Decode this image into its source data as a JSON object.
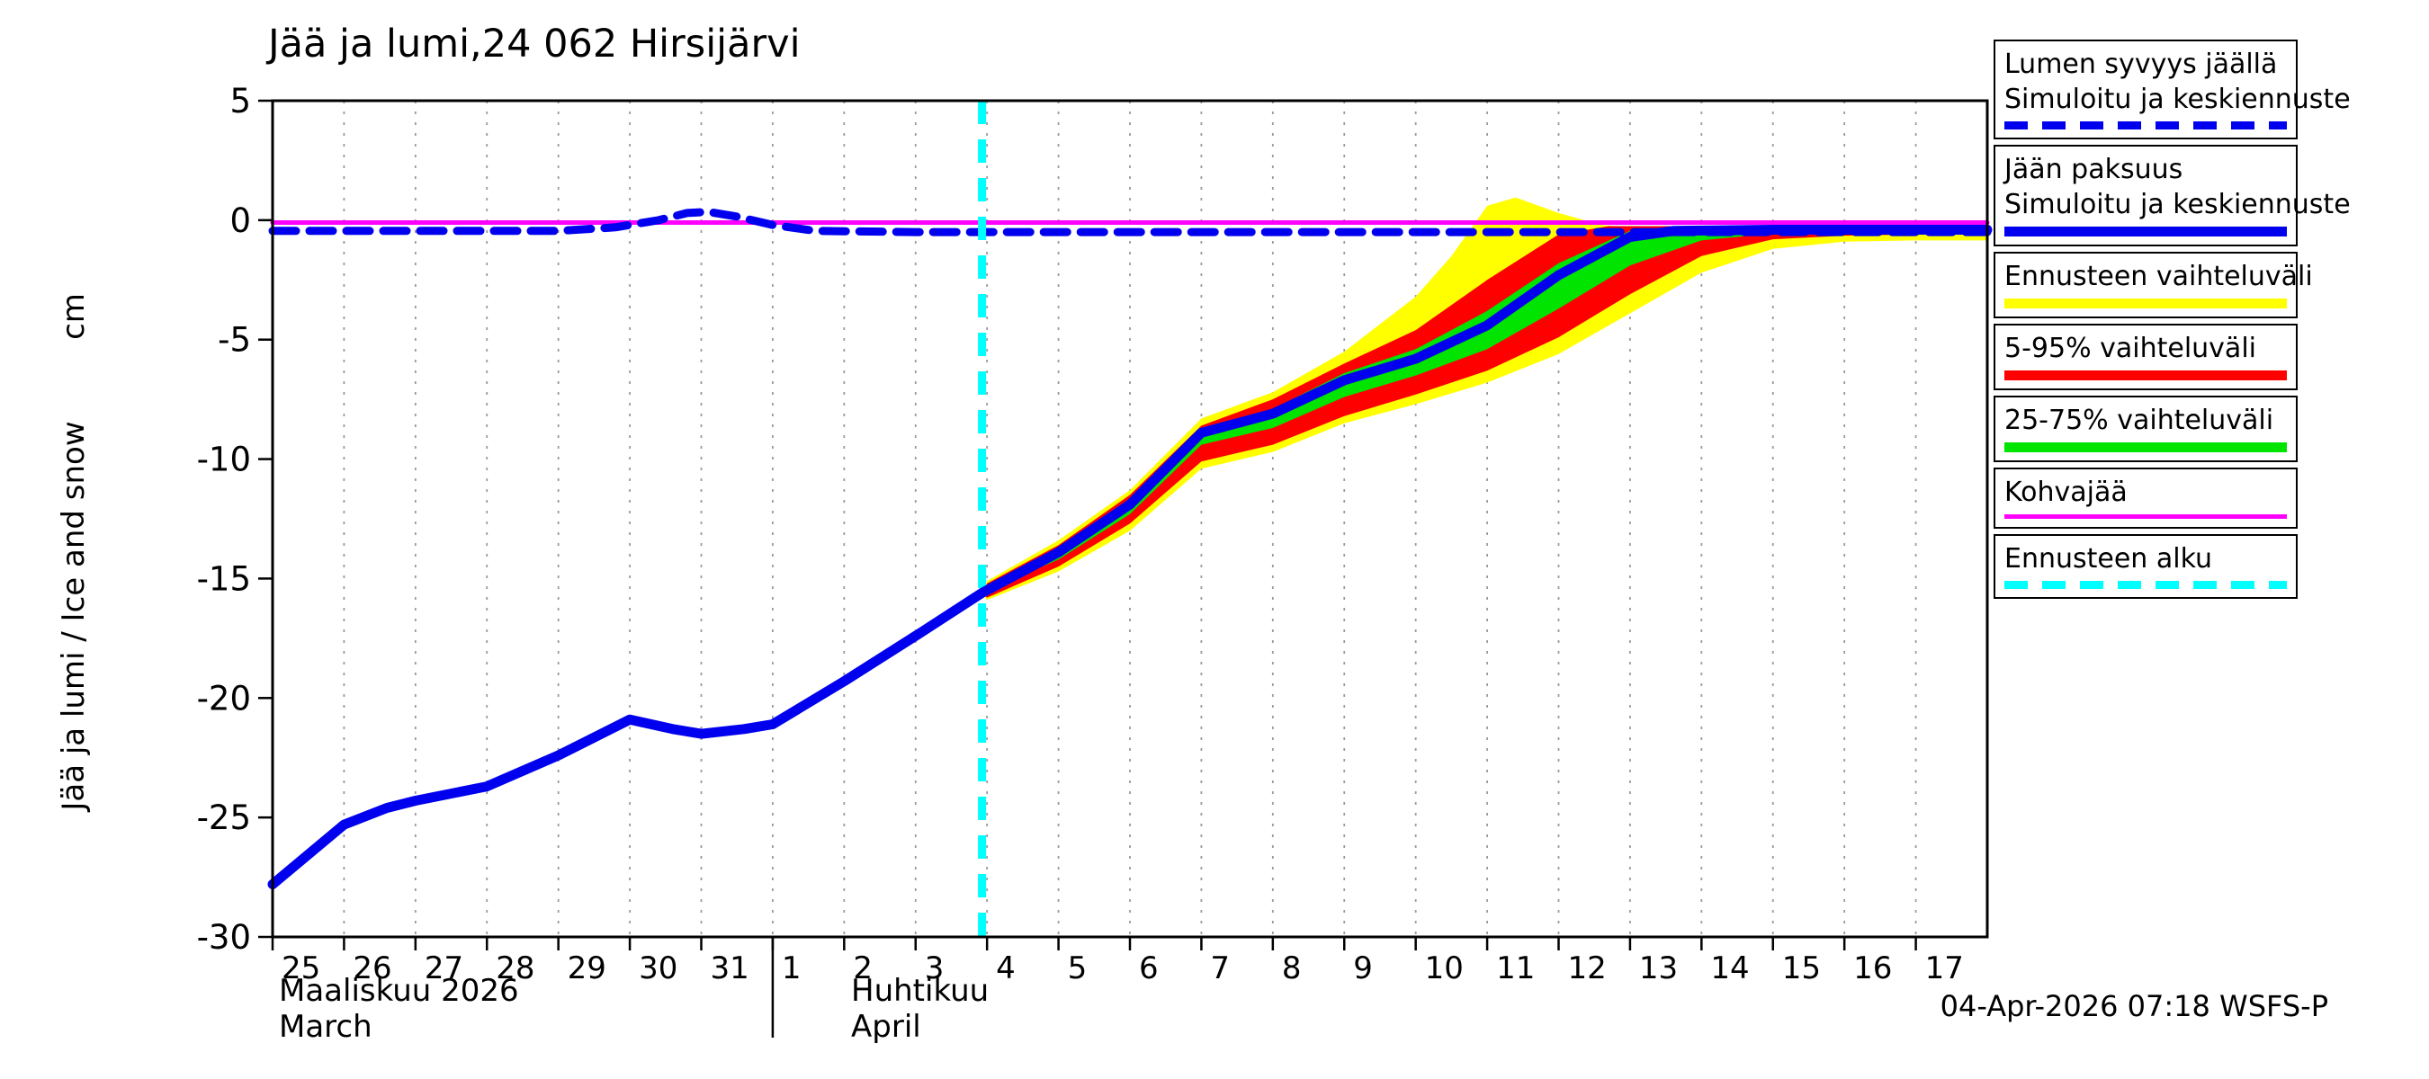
{
  "stamp": "04-Apr-2026 07:18 WSFS-P",
  "chart_data": {
    "type": "line",
    "title": "Jää ja lumi,24 062 Hirsijärvi",
    "ylabel": "Jää ja lumi / Ice and snow",
    "y_unit": "cm",
    "ylim": [
      -30,
      5
    ],
    "yticks": [
      5,
      0,
      -5,
      -10,
      -15,
      -20,
      -25,
      -30
    ],
    "xlim": [
      0,
      24
    ],
    "x_description": "day index, 0 = 25 March 2026, one unit = one day",
    "xtick_labels": [
      "25",
      "26",
      "27",
      "28",
      "29",
      "30",
      "31",
      "1",
      "2",
      "3",
      "4",
      "5",
      "6",
      "7",
      "8",
      "9",
      "10",
      "11",
      "12",
      "13",
      "14",
      "15",
      "16",
      "17"
    ],
    "month_labels": {
      "fi_1": "Maaliskuu 2026",
      "en_1": "March",
      "fi_2": "Huhtikuu",
      "en_2": "April"
    },
    "month_separator_x": 7,
    "grid": "vertical-dotted",
    "legend_position": "outside-right",
    "colors": {
      "blue": "#0000ee",
      "yellow": "#ffff00",
      "red": "#ff0000",
      "green": "#00e400",
      "magenta": "#ff00ff",
      "cyan": "#00ffff",
      "grid": "#9a9a9a",
      "axis": "#000000"
    },
    "vline": {
      "name": "forecast_start",
      "label": "Ennusteen alku",
      "x": 9.93,
      "color_key": "cyan",
      "style": "dashed",
      "width": 9
    },
    "series": [
      {
        "name": "kohvajaa",
        "label": "Kohvajää",
        "color_key": "magenta",
        "style": "solid",
        "width": 5,
        "points": [
          [
            0,
            -0.1
          ],
          [
            24,
            -0.1
          ]
        ]
      },
      {
        "name": "snow_depth_on_ice",
        "label": "Lumen syvyys jäällä - Simuloitu ja keskiennuste",
        "color_key": "blue",
        "style": "dashed",
        "width": 9,
        "points": [
          [
            0,
            -0.45
          ],
          [
            4,
            -0.45
          ],
          [
            4.8,
            -0.3
          ],
          [
            5.4,
            0.0
          ],
          [
            5.8,
            0.3
          ],
          [
            6.1,
            0.35
          ],
          [
            6.5,
            0.15
          ],
          [
            7,
            -0.2
          ],
          [
            7.6,
            -0.45
          ],
          [
            9,
            -0.5
          ],
          [
            24,
            -0.5
          ]
        ]
      },
      {
        "name": "ice_thickness_mean",
        "label": "Jään paksuus - Simuloitu ja keskiennuste",
        "color_key": "blue",
        "style": "solid",
        "width": 11,
        "points": [
          [
            0,
            -27.8
          ],
          [
            1,
            -25.3
          ],
          [
            1.6,
            -24.6
          ],
          [
            2,
            -24.3
          ],
          [
            3,
            -23.7
          ],
          [
            4,
            -22.4
          ],
          [
            5,
            -20.9
          ],
          [
            5.6,
            -21.3
          ],
          [
            6,
            -21.5
          ],
          [
            6.6,
            -21.3
          ],
          [
            7,
            -21.1
          ],
          [
            8,
            -19.3
          ],
          [
            9,
            -17.4
          ],
          [
            9.93,
            -15.6
          ],
          [
            11,
            -13.9
          ],
          [
            12,
            -11.9
          ],
          [
            13,
            -8.9
          ],
          [
            14,
            -8.1
          ],
          [
            15,
            -6.7
          ],
          [
            16,
            -5.8
          ],
          [
            17,
            -4.4
          ],
          [
            18,
            -2.3
          ],
          [
            19,
            -0.7
          ],
          [
            19.6,
            -0.45
          ],
          [
            21,
            -0.4
          ],
          [
            24,
            -0.4
          ]
        ]
      }
    ],
    "bands": [
      {
        "name": "forecast_range",
        "label": "Ennusteen vaihteluväli",
        "color_key": "yellow",
        "upper": [
          [
            9.93,
            -15.6
          ],
          [
            10,
            -15.1
          ],
          [
            11,
            -13.4
          ],
          [
            12,
            -11.3
          ],
          [
            13,
            -8.3
          ],
          [
            14,
            -7.2
          ],
          [
            15,
            -5.5
          ],
          [
            16,
            -3.2
          ],
          [
            16.5,
            -1.5
          ],
          [
            17,
            0.6
          ],
          [
            17.4,
            0.95
          ],
          [
            18,
            0.3
          ],
          [
            18.6,
            -0.2
          ],
          [
            19,
            -0.3
          ],
          [
            24,
            -0.3
          ]
        ],
        "lower": [
          [
            9.93,
            -15.6
          ],
          [
            10,
            -15.9
          ],
          [
            11,
            -14.7
          ],
          [
            12,
            -13.0
          ],
          [
            13,
            -10.4
          ],
          [
            14,
            -9.7
          ],
          [
            15,
            -8.5
          ],
          [
            16,
            -7.7
          ],
          [
            17,
            -6.8
          ],
          [
            18,
            -5.6
          ],
          [
            19,
            -3.9
          ],
          [
            20,
            -2.2
          ],
          [
            21,
            -1.2
          ],
          [
            22,
            -0.9
          ],
          [
            23,
            -0.85
          ],
          [
            24,
            -0.85
          ]
        ]
      },
      {
        "name": "range_5_95",
        "label": "5-95% vaihteluväli",
        "color_key": "red",
        "upper": [
          [
            9.93,
            -15.6
          ],
          [
            10,
            -15.2
          ],
          [
            11,
            -13.6
          ],
          [
            12,
            -11.5
          ],
          [
            13,
            -8.6
          ],
          [
            14,
            -7.5
          ],
          [
            15,
            -6.0
          ],
          [
            16,
            -4.6
          ],
          [
            17,
            -2.5
          ],
          [
            18,
            -0.6
          ],
          [
            18.7,
            -0.25
          ],
          [
            19,
            -0.25
          ],
          [
            24,
            -0.25
          ]
        ],
        "lower": [
          [
            9.93,
            -15.6
          ],
          [
            10,
            -15.8
          ],
          [
            11,
            -14.5
          ],
          [
            12,
            -12.7
          ],
          [
            13,
            -10.1
          ],
          [
            14,
            -9.4
          ],
          [
            15,
            -8.2
          ],
          [
            16,
            -7.3
          ],
          [
            17,
            -6.3
          ],
          [
            18,
            -4.9
          ],
          [
            19,
            -3.1
          ],
          [
            20,
            -1.5
          ],
          [
            21,
            -0.8
          ],
          [
            22,
            -0.65
          ],
          [
            23,
            -0.6
          ],
          [
            24,
            -0.6
          ]
        ]
      },
      {
        "name": "range_25_75",
        "label": "25-75% vaihteluväli",
        "color_key": "green",
        "upper": [
          [
            9.93,
            -15.6
          ],
          [
            10,
            -15.3
          ],
          [
            11,
            -13.7
          ],
          [
            12,
            -11.7
          ],
          [
            13,
            -8.8
          ],
          [
            14,
            -7.9
          ],
          [
            15,
            -6.4
          ],
          [
            16,
            -5.4
          ],
          [
            17,
            -3.8
          ],
          [
            18,
            -1.8
          ],
          [
            19,
            -0.45
          ],
          [
            19.5,
            -0.35
          ],
          [
            20,
            -0.35
          ],
          [
            24,
            -0.35
          ]
        ],
        "lower": [
          [
            9.93,
            -15.6
          ],
          [
            10,
            -15.5
          ],
          [
            11,
            -14.2
          ],
          [
            12,
            -12.3
          ],
          [
            13,
            -9.4
          ],
          [
            14,
            -8.7
          ],
          [
            15,
            -7.4
          ],
          [
            16,
            -6.5
          ],
          [
            17,
            -5.4
          ],
          [
            18,
            -3.7
          ],
          [
            19,
            -1.9
          ],
          [
            20,
            -0.85
          ],
          [
            21,
            -0.55
          ],
          [
            22,
            -0.5
          ],
          [
            23,
            -0.5
          ],
          [
            24,
            -0.5
          ]
        ]
      }
    ],
    "legend": [
      {
        "lines": [
          "Lumen syvyys jäällä",
          "Simuloitu ja keskiennuste"
        ],
        "sample": {
          "color_key": "blue",
          "dashed": true,
          "height": 9
        }
      },
      {
        "lines": [
          "Jään paksuus",
          "Simuloitu ja keskiennuste"
        ],
        "sample": {
          "color_key": "blue",
          "dashed": false,
          "height": 11
        }
      },
      {
        "lines": [
          "Ennusteen vaihteluväli"
        ],
        "sample": {
          "color_key": "yellow",
          "dashed": false,
          "height": 11
        }
      },
      {
        "lines": [
          "5-95% vaihteluväli"
        ],
        "sample": {
          "color_key": "red",
          "dashed": false,
          "height": 11
        }
      },
      {
        "lines": [
          "25-75% vaihteluväli"
        ],
        "sample": {
          "color_key": "green",
          "dashed": false,
          "height": 11
        }
      },
      {
        "lines": [
          "Kohvajää"
        ],
        "sample": {
          "color_key": "magenta",
          "dashed": false,
          "height": 5
        }
      },
      {
        "lines": [
          "Ennusteen alku"
        ],
        "sample": {
          "color_key": "cyan",
          "dashed": true,
          "height": 9
        }
      }
    ]
  }
}
